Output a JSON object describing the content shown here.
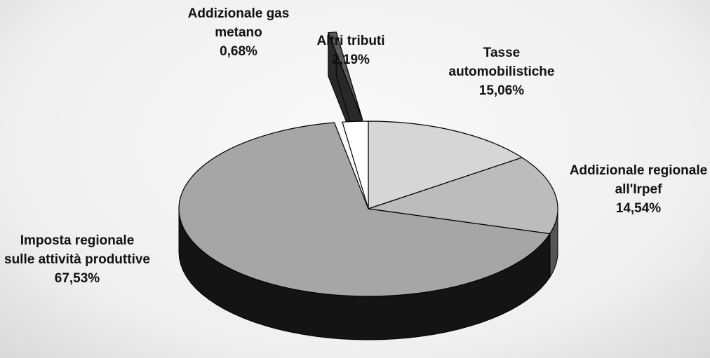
{
  "chart_data": {
    "type": "pie3d",
    "categories": [
      "Tasse automobilistiche",
      "Addizionale regionale all'Irpef",
      "Imposta regionale sulle attività produttive",
      "Addizionale gas metano",
      "Altri tributi"
    ],
    "values": [
      15.06,
      14.54,
      67.53,
      0.68,
      2.19
    ],
    "value_labels": [
      "15,06%",
      "14,54%",
      "67,53%",
      "0,68%",
      "2,19%"
    ],
    "colors": [
      "#d6d6d6",
      "#bcbcbc",
      "#a6a6a6",
      "#5a5a5a",
      "#ffffff"
    ],
    "exploded": [
      false,
      false,
      false,
      true,
      false
    ]
  }
}
